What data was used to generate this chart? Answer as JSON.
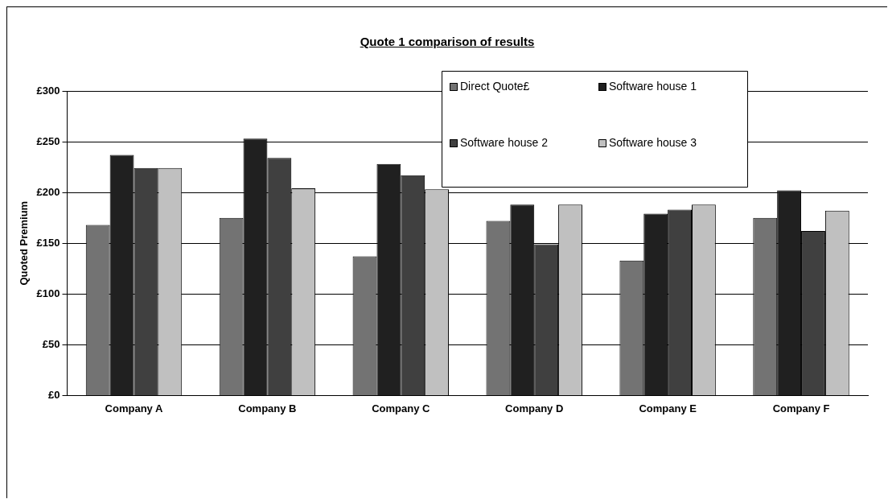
{
  "chart_data": {
    "type": "bar",
    "title": "Quote 1 comparison of results",
    "ylabel": "Quoted Premium",
    "categories": [
      "Company A",
      "Company B",
      "Company C",
      "Company D",
      "Company E",
      "Company F"
    ],
    "series": [
      {
        "name": "Direct Quote£",
        "color": "#737373",
        "values": [
          168,
          175,
          137,
          172,
          133,
          175
        ]
      },
      {
        "name": "Software house 1",
        "color": "#202020",
        "values": [
          237,
          253,
          228,
          188,
          179,
          202
        ]
      },
      {
        "name": "Software house 2",
        "color": "#404040",
        "values": [
          224,
          234,
          217,
          149,
          183,
          162
        ]
      },
      {
        "name": "Software house 3",
        "color": "#c0c0c0",
        "values": [
          224,
          204,
          203,
          188,
          188,
          182
        ]
      }
    ],
    "ylim": [
      0,
      300
    ],
    "yticks": [
      {
        "value": 0,
        "label": "£0"
      },
      {
        "value": 50,
        "label": "£50"
      },
      {
        "value": 100,
        "label": "£100"
      },
      {
        "value": 150,
        "label": "£150"
      },
      {
        "value": 200,
        "label": "£200"
      },
      {
        "value": 250,
        "label": "£250"
      },
      {
        "value": 300,
        "label": "£300"
      }
    ],
    "grid": "y",
    "legend": "top right"
  }
}
